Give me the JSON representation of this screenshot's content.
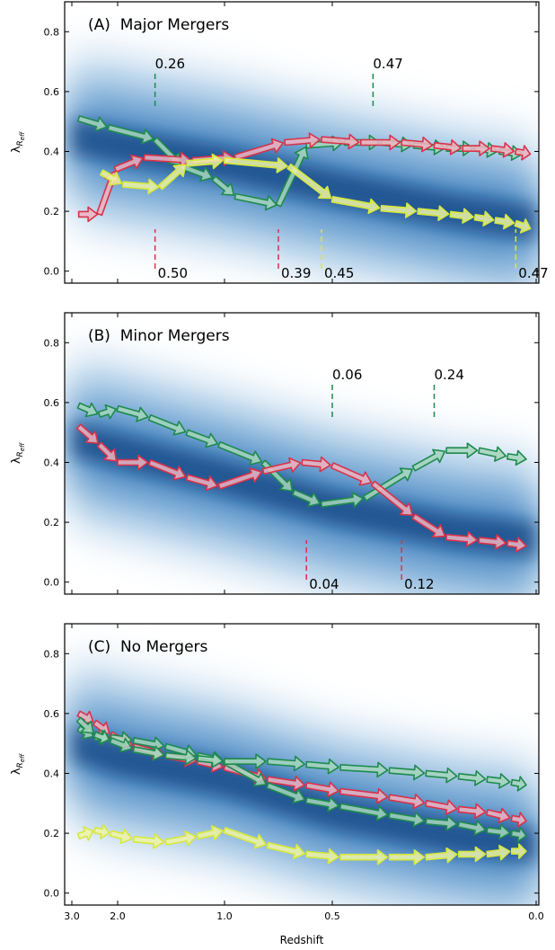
{
  "x_axis": {
    "label": "Redshift",
    "ticks": [
      {
        "value": 3.0,
        "label": "3.0"
      },
      {
        "value": 2.0,
        "label": "2.0"
      },
      {
        "value": 1.0,
        "label": "1.0"
      },
      {
        "value": 0.5,
        "label": "0.5"
      },
      {
        "value": 0.0,
        "label": "0.0"
      }
    ]
  },
  "colors": {
    "green": "#1e8a4e",
    "red": "#d8324a",
    "yellow": "#d6e83c",
    "blue_ridge": "#0a3f7d"
  },
  "chart_data": [
    {
      "type": "scatter",
      "panel_label": "(A)  Major Mergers",
      "ylabel": "λR_eff",
      "ylim": [
        -0.04,
        0.9
      ],
      "yticks": [
        0.0,
        0.2,
        0.4,
        0.6,
        0.8
      ],
      "density_ridge": [
        [
          3.0,
          0.45
        ],
        [
          2.0,
          0.42
        ],
        [
          1.0,
          0.36
        ],
        [
          0.5,
          0.28
        ],
        [
          0.2,
          0.2
        ],
        [
          0.0,
          0.16
        ]
      ],
      "series": [
        {
          "color": "green",
          "points": [
            [
              2.85,
              0.51
            ],
            [
              2.2,
              0.48
            ],
            [
              1.65,
              0.44
            ],
            [
              1.4,
              0.35
            ],
            [
              1.1,
              0.31
            ],
            [
              0.95,
              0.25
            ],
            [
              0.75,
              0.22
            ],
            [
              0.62,
              0.42
            ],
            [
              0.47,
              0.43
            ],
            [
              0.38,
              0.43
            ],
            [
              0.3,
              0.42
            ],
            [
              0.22,
              0.41
            ],
            [
              0.15,
              0.41
            ],
            [
              0.09,
              0.4
            ],
            [
              0.03,
              0.39
            ]
          ]
        },
        {
          "color": "red",
          "points": [
            [
              2.85,
              0.19
            ],
            [
              2.4,
              0.19
            ],
            [
              2.05,
              0.34
            ],
            [
              1.75,
              0.38
            ],
            [
              1.3,
              0.37
            ],
            [
              0.95,
              0.38
            ],
            [
              0.72,
              0.43
            ],
            [
              0.55,
              0.44
            ],
            [
              0.43,
              0.43
            ],
            [
              0.33,
              0.43
            ],
            [
              0.25,
              0.42
            ],
            [
              0.18,
              0.41
            ],
            [
              0.11,
              0.41
            ],
            [
              0.05,
              0.4
            ],
            [
              0.01,
              0.39
            ]
          ]
        },
        {
          "color": "yellow",
          "points": [
            [
              2.35,
              0.33
            ],
            [
              1.95,
              0.29
            ],
            [
              1.6,
              0.28
            ],
            [
              1.35,
              0.36
            ],
            [
              1.0,
              0.37
            ],
            [
              0.7,
              0.35
            ],
            [
              0.5,
              0.24
            ],
            [
              0.38,
              0.21
            ],
            [
              0.29,
              0.2
            ],
            [
              0.21,
              0.19
            ],
            [
              0.15,
              0.18
            ],
            [
              0.1,
              0.17
            ],
            [
              0.05,
              0.16
            ],
            [
              0.01,
              0.14
            ]
          ]
        }
      ],
      "annotations": [
        {
          "z": 1.65,
          "label": "0.26",
          "color": "green",
          "side": "top"
        },
        {
          "z": 0.4,
          "label": "0.47",
          "color": "green",
          "side": "top"
        },
        {
          "z": 1.65,
          "label": "0.50",
          "color": "red",
          "side": "bottom"
        },
        {
          "z": 0.75,
          "label": "0.39",
          "color": "red",
          "side": "bottom"
        },
        {
          "z": 0.55,
          "label": "0.45",
          "color": "yellow",
          "side": "bottom"
        },
        {
          "z": 0.05,
          "label": "0.47",
          "color": "yellow",
          "side": "bottom"
        }
      ]
    },
    {
      "type": "scatter",
      "panel_label": "(B)  Minor Mergers",
      "ylabel": "λR_eff",
      "ylim": [
        -0.04,
        0.9
      ],
      "yticks": [
        0.0,
        0.2,
        0.4,
        0.6,
        0.8
      ],
      "density_ridge": [
        [
          3.0,
          0.48
        ],
        [
          2.0,
          0.44
        ],
        [
          1.0,
          0.35
        ],
        [
          0.5,
          0.25
        ],
        [
          0.2,
          0.17
        ],
        [
          0.0,
          0.14
        ]
      ],
      "series": [
        {
          "color": "green",
          "points": [
            [
              2.85,
              0.59
            ],
            [
              2.4,
              0.56
            ],
            [
              2.0,
              0.58
            ],
            [
              1.7,
              0.55
            ],
            [
              1.35,
              0.5
            ],
            [
              1.05,
              0.46
            ],
            [
              0.82,
              0.4
            ],
            [
              0.68,
              0.3
            ],
            [
              0.55,
              0.26
            ],
            [
              0.42,
              0.28
            ],
            [
              0.3,
              0.38
            ],
            [
              0.22,
              0.44
            ],
            [
              0.14,
              0.44
            ],
            [
              0.07,
              0.42
            ],
            [
              0.02,
              0.41
            ]
          ]
        },
        {
          "color": "red",
          "points": [
            [
              2.85,
              0.52
            ],
            [
              2.4,
              0.46
            ],
            [
              2.0,
              0.4
            ],
            [
              1.7,
              0.4
            ],
            [
              1.35,
              0.35
            ],
            [
              1.05,
              0.32
            ],
            [
              0.82,
              0.37
            ],
            [
              0.64,
              0.4
            ],
            [
              0.5,
              0.39
            ],
            [
              0.4,
              0.33
            ],
            [
              0.3,
              0.22
            ],
            [
              0.22,
              0.15
            ],
            [
              0.14,
              0.14
            ],
            [
              0.07,
              0.13
            ],
            [
              0.02,
              0.12
            ]
          ]
        }
      ],
      "annotations": [
        {
          "z": 0.5,
          "label": "0.06",
          "color": "green",
          "side": "top"
        },
        {
          "z": 0.25,
          "label": "0.24",
          "color": "green",
          "side": "top"
        },
        {
          "z": 0.62,
          "label": "0.04",
          "color": "red",
          "side": "bottom"
        },
        {
          "z": 0.33,
          "label": "0.12",
          "color": "red",
          "side": "bottom"
        }
      ]
    },
    {
      "type": "scatter",
      "panel_label": "(C)  No Mergers",
      "ylabel": "λR_eff",
      "ylim": [
        -0.04,
        0.9
      ],
      "yticks": [
        0.0,
        0.2,
        0.4,
        0.6,
        0.8
      ],
      "density_ridge": [
        [
          3.0,
          0.5
        ],
        [
          2.0,
          0.45
        ],
        [
          1.0,
          0.38
        ],
        [
          0.5,
          0.27
        ],
        [
          0.2,
          0.19
        ],
        [
          0.0,
          0.16
        ]
      ],
      "series": [
        {
          "color": "red",
          "points": [
            [
              2.85,
              0.6
            ],
            [
              2.5,
              0.57
            ],
            [
              2.15,
              0.53
            ],
            [
              1.85,
              0.49
            ],
            [
              1.55,
              0.46
            ],
            [
              1.25,
              0.44
            ],
            [
              1.0,
              0.42
            ],
            [
              0.8,
              0.38
            ],
            [
              0.62,
              0.36
            ],
            [
              0.48,
              0.34
            ],
            [
              0.36,
              0.32
            ],
            [
              0.27,
              0.3
            ],
            [
              0.19,
              0.28
            ],
            [
              0.12,
              0.27
            ],
            [
              0.06,
              0.25
            ],
            [
              0.02,
              0.24
            ]
          ]
        },
        {
          "color": "green",
          "points": [
            [
              2.85,
              0.55
            ],
            [
              2.5,
              0.52
            ],
            [
              2.15,
              0.52
            ],
            [
              1.85,
              0.51
            ],
            [
              1.55,
              0.49
            ],
            [
              1.25,
              0.46
            ],
            [
              1.0,
              0.44
            ],
            [
              0.8,
              0.36
            ],
            [
              0.62,
              0.31
            ],
            [
              0.48,
              0.29
            ],
            [
              0.36,
              0.26
            ],
            [
              0.27,
              0.24
            ],
            [
              0.19,
              0.23
            ],
            [
              0.12,
              0.21
            ],
            [
              0.06,
              0.2
            ],
            [
              0.02,
              0.19
            ]
          ]
        },
        {
          "color": "green",
          "points": [
            [
              2.85,
              0.58
            ],
            [
              2.5,
              0.53
            ],
            [
              2.15,
              0.51
            ],
            [
              1.85,
              0.48
            ],
            [
              1.55,
              0.46
            ],
            [
              1.25,
              0.45
            ],
            [
              1.0,
              0.44
            ],
            [
              0.8,
              0.44
            ],
            [
              0.62,
              0.43
            ],
            [
              0.48,
              0.42
            ],
            [
              0.36,
              0.41
            ],
            [
              0.27,
              0.4
            ],
            [
              0.19,
              0.39
            ],
            [
              0.12,
              0.38
            ],
            [
              0.06,
              0.37
            ],
            [
              0.02,
              0.36
            ]
          ]
        },
        {
          "color": "yellow",
          "points": [
            [
              2.85,
              0.19
            ],
            [
              2.5,
              0.21
            ],
            [
              2.15,
              0.2
            ],
            [
              1.85,
              0.18
            ],
            [
              1.55,
              0.17
            ],
            [
              1.25,
              0.19
            ],
            [
              1.0,
              0.21
            ],
            [
              0.8,
              0.16
            ],
            [
              0.62,
              0.13
            ],
            [
              0.48,
              0.12
            ],
            [
              0.36,
              0.12
            ],
            [
              0.27,
              0.12
            ],
            [
              0.19,
              0.13
            ],
            [
              0.12,
              0.13
            ],
            [
              0.06,
              0.14
            ],
            [
              0.02,
              0.14
            ]
          ]
        }
      ],
      "annotations": []
    }
  ]
}
